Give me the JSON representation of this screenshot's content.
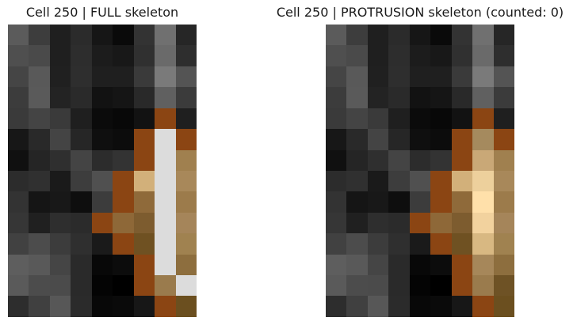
{
  "panels": [
    {
      "title": "Cell 250 | FULL skeleton",
      "grid": [
        [
          "#5b5b5b",
          "#3d3d3d",
          "#1f1f1f",
          "#2b2b2b",
          "#161616",
          "#0a0a0a",
          "#333333",
          "#707070",
          "#262626"
        ],
        [
          "#4f4f4f",
          "#4a4a4a",
          "#1f1f1f",
          "#2d2d2d",
          "#1c1c1c",
          "#181818",
          "#303030",
          "#6a6a6a",
          "#2e2e2e"
        ],
        [
          "#454545",
          "#595959",
          "#202020",
          "#2e2e2e",
          "#1f1f1f",
          "#1f1f1f",
          "#3a3a3a",
          "#7a7a7a",
          "#545454"
        ],
        [
          "#3c3c3c",
          "#5a5a5a",
          "#232323",
          "#2a2a2a",
          "#121212",
          "#151515",
          "#292929",
          "#606060",
          "#3b3b3b"
        ],
        [
          "#3a3a3a",
          "#444444",
          "#3a3a3a",
          "#1f1f1f",
          "#0b0b0b",
          "#080808",
          "#121212",
          "#8b4513",
          "#1f1f1f"
        ],
        [
          "#171717",
          "#292929",
          "#444444",
          "#262626",
          "#0f0f0f",
          "#0c0c0c",
          "#8b4513",
          "#dcdcdc",
          "#8b4513"
        ],
        [
          "#101010",
          "#252525",
          "#2f2f2f",
          "#444444",
          "#2c2c2c",
          "#333333",
          "#8b4513",
          "#dcdcdc",
          "#a0804f"
        ],
        [
          "#2c2c2c",
          "#303030",
          "#1a1a1a",
          "#3d3d3d",
          "#505050",
          "#8b4513",
          "#d2b07a",
          "#dcdcdc",
          "#a8885a"
        ],
        [
          "#333333",
          "#151515",
          "#181818",
          "#0e0e0e",
          "#3c3c3c",
          "#8b4513",
          "#8f6a3a",
          "#dcdcdc",
          "#9c7b4b"
        ],
        [
          "#363636",
          "#202020",
          "#2e2e2e",
          "#2b2b2b",
          "#8b4513",
          "#8e6838",
          "#7d5c2f",
          "#dcdcdc",
          "#a5855a"
        ],
        [
          "#414141",
          "#4c4c4c",
          "#3c3c3c",
          "#2f2f2f",
          "#1a1a1a",
          "#8b4513",
          "#6f5122",
          "#dcdcdc",
          "#a08250"
        ],
        [
          "#5e5e5e",
          "#595959",
          "#454545",
          "#2a2a2a",
          "#080808",
          "#0c0c0c",
          "#8b4513",
          "#dcdcdc",
          "#8d6e3e"
        ],
        [
          "#5a5a5a",
          "#4c4c4c",
          "#4b4b4b",
          "#2a2a2a",
          "#040404",
          "#000000",
          "#8b4513",
          "#9a7b4d",
          "#dcdcdc"
        ],
        [
          "#2d2d2d",
          "#404040",
          "#575757",
          "#2b2b2b",
          "#080808",
          "#0a0a0a",
          "#171717",
          "#8b4513",
          "#6b4f1f"
        ]
      ]
    },
    {
      "title": "Cell 250 | PROTRUSION skeleton (counted: 0)",
      "grid": [
        [
          "#5b5b5b",
          "#3d3d3d",
          "#1f1f1f",
          "#2b2b2b",
          "#161616",
          "#0a0a0a",
          "#333333",
          "#707070",
          "#262626"
        ],
        [
          "#4f4f4f",
          "#4a4a4a",
          "#1f1f1f",
          "#2d2d2d",
          "#1c1c1c",
          "#181818",
          "#303030",
          "#6a6a6a",
          "#2e2e2e"
        ],
        [
          "#454545",
          "#595959",
          "#202020",
          "#2e2e2e",
          "#1f1f1f",
          "#1f1f1f",
          "#3a3a3a",
          "#7a7a7a",
          "#545454"
        ],
        [
          "#3c3c3c",
          "#5a5a5a",
          "#232323",
          "#2a2a2a",
          "#121212",
          "#151515",
          "#292929",
          "#606060",
          "#3b3b3b"
        ],
        [
          "#3a3a3a",
          "#444444",
          "#3a3a3a",
          "#1f1f1f",
          "#0b0b0b",
          "#080808",
          "#121212",
          "#8b4513",
          "#1f1f1f"
        ],
        [
          "#171717",
          "#292929",
          "#444444",
          "#262626",
          "#0f0f0f",
          "#0c0c0c",
          "#8b4513",
          "#a58a5e",
          "#8b4513"
        ],
        [
          "#101010",
          "#252525",
          "#2f2f2f",
          "#444444",
          "#2c2c2c",
          "#333333",
          "#8b4513",
          "#c9a877",
          "#a0804f"
        ],
        [
          "#2c2c2c",
          "#303030",
          "#1a1a1a",
          "#3d3d3d",
          "#505050",
          "#8b4513",
          "#d2b07a",
          "#edd09c",
          "#a8885a"
        ],
        [
          "#333333",
          "#151515",
          "#181818",
          "#0e0e0e",
          "#3c3c3c",
          "#8b4513",
          "#8f6a3a",
          "#ffe0aa",
          "#9c7b4b"
        ],
        [
          "#363636",
          "#202020",
          "#2e2e2e",
          "#2b2b2b",
          "#8b4513",
          "#8e6838",
          "#7d5c2f",
          "#f2d29e",
          "#a5855a"
        ],
        [
          "#414141",
          "#4c4c4c",
          "#3c3c3c",
          "#2f2f2f",
          "#1a1a1a",
          "#8b4513",
          "#6f5122",
          "#d8b882",
          "#a08250"
        ],
        [
          "#5e5e5e",
          "#595959",
          "#454545",
          "#2a2a2a",
          "#080808",
          "#0c0c0c",
          "#8b4513",
          "#a6875a",
          "#8d6e3e"
        ],
        [
          "#5a5a5a",
          "#4c4c4c",
          "#4b4b4b",
          "#2a2a2a",
          "#040404",
          "#000000",
          "#8b4513",
          "#9a7b4d",
          "#6e5225"
        ],
        [
          "#2d2d2d",
          "#404040",
          "#575757",
          "#2b2b2b",
          "#080808",
          "#0a0a0a",
          "#171717",
          "#8b4513",
          "#6b4f1f"
        ]
      ]
    }
  ]
}
